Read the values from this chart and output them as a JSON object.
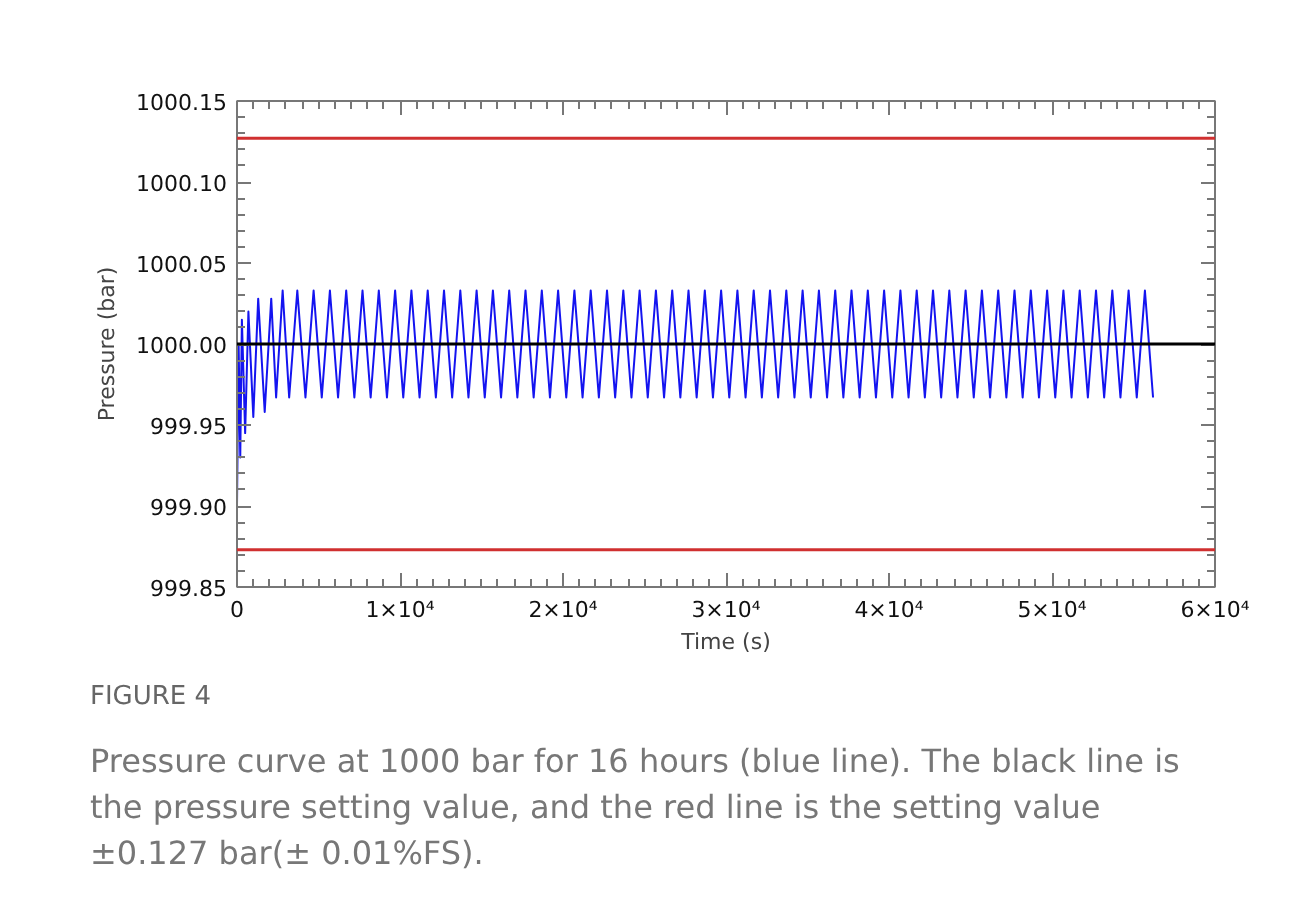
{
  "chart_data": {
    "type": "line",
    "xlabel": "Time (s)",
    "ylabel": "Pressure (bar)",
    "xlim": [
      0,
      60000
    ],
    "ylim": [
      999.85,
      1000.15
    ],
    "xticks": [
      0,
      {
        "value": 10000,
        "label": "1×10⁴"
      },
      {
        "value": 20000,
        "label": "2×10⁴"
      },
      {
        "value": 30000,
        "label": "3×10⁴"
      },
      {
        "value": 40000,
        "label": "4×10⁴"
      },
      {
        "value": 50000,
        "label": "5×10⁴"
      },
      {
        "value": 60000,
        "label": "6×10⁴"
      }
    ],
    "yticks": [
      999.85,
      {
        "value": 999.9,
        "label": "999.90"
      },
      999.95,
      {
        "value": 1000,
        "label": "1000.00"
      },
      {
        "value": 1000.05,
        "label": "1000.05"
      },
      {
        "value": 1000.1,
        "label": "1000.10"
      },
      {
        "value": 1000.15,
        "label": "1000.15"
      }
    ],
    "series": [
      {
        "color": "#1414f0",
        "x": [
          0,
          100,
          200,
          300,
          500,
          700,
          1000,
          1300,
          1700,
          2100,
          2400,
          2800,
          3200,
          3700,
          4200,
          4700,
          5200,
          5700,
          6200,
          6700,
          7200,
          7700,
          8200,
          8700,
          9200,
          9700,
          10200,
          10700,
          11200,
          11700,
          12200,
          12700,
          13200,
          13700,
          14200,
          14700,
          15200,
          15700,
          16200,
          16700,
          17200,
          17700,
          18200,
          18700,
          19200,
          19700,
          20200,
          20700,
          21200,
          21700,
          22200,
          22700,
          23200,
          23700,
          24200,
          24700,
          25200,
          25700,
          26200,
          26700,
          27200,
          27700,
          28200,
          28700,
          29200,
          29700,
          30200,
          30700,
          31200,
          31700,
          32200,
          32700,
          33200,
          33700,
          34200,
          34700,
          35200,
          35700,
          36200,
          36700,
          37200,
          37700,
          38200,
          38700,
          39200,
          39700,
          40200,
          40700,
          41200,
          41700,
          42200,
          42700,
          43200,
          43700,
          44200,
          44700,
          45200,
          45700,
          46200,
          46700,
          47200,
          47700,
          48200,
          48700,
          49200,
          49700,
          50200,
          50700,
          51200,
          51700,
          52200,
          52700,
          53200,
          53700,
          54200,
          54700,
          55200,
          55700,
          56200
        ],
        "values": [
          999.9,
          1000.0,
          999.93,
          1000.015,
          999.945,
          1000.02,
          999.955,
          1000.028,
          999.958,
          1000.028,
          999.967,
          1000.033,
          999.967,
          1000.033,
          999.967,
          1000.033,
          999.967,
          1000.033,
          999.967,
          1000.033,
          999.967,
          1000.033,
          999.967,
          1000.033,
          999.967,
          1000.033,
          999.967,
          1000.033,
          999.967,
          1000.033,
          999.967,
          1000.033,
          999.967,
          1000.033,
          999.967,
          1000.033,
          999.967,
          1000.033,
          999.967,
          1000.033,
          999.967,
          1000.033,
          999.967,
          1000.033,
          999.967,
          1000.033,
          999.967,
          1000.033,
          999.967,
          1000.033,
          999.967,
          1000.033,
          999.967,
          1000.033,
          999.967,
          1000.033,
          999.967,
          1000.033,
          999.967,
          1000.033,
          999.967,
          1000.033,
          999.967,
          1000.033,
          999.967,
          1000.033,
          999.967,
          1000.033,
          999.967,
          1000.033,
          999.967,
          1000.033,
          999.967,
          1000.033,
          999.967,
          1000.033,
          999.967,
          1000.033,
          999.967,
          1000.033,
          999.967,
          1000.033,
          999.967,
          1000.033,
          999.967,
          1000.033,
          999.967,
          1000.033,
          999.967,
          1000.033,
          999.967,
          1000.033,
          999.967,
          1000.033,
          999.967,
          1000.033,
          999.967,
          1000.033,
          999.967,
          1000.033,
          999.967,
          1000.033,
          999.967,
          1000.033,
          999.967,
          1000.033,
          999.967,
          1000.033,
          999.967,
          1000.033,
          999.967,
          1000.033,
          999.967,
          1000.033,
          999.967,
          1000.033,
          999.967,
          1000.033,
          999.967
        ]
      }
    ],
    "ref_lines": [
      {
        "axis": "y",
        "value": 1000.127,
        "color": "#d03030"
      },
      {
        "axis": "y",
        "value": 1000,
        "color": "#000000"
      },
      {
        "axis": "y",
        "value": 999.873,
        "color": "#d03030"
      }
    ],
    "annotations": [
      "FIGURE 4",
      "Pressure curve at 1000 bar for 16 hours (blue line). The black line is the pressure setting value, and the red line is the setting value ±0.127 bar(± 0.01%FS)."
    ]
  }
}
